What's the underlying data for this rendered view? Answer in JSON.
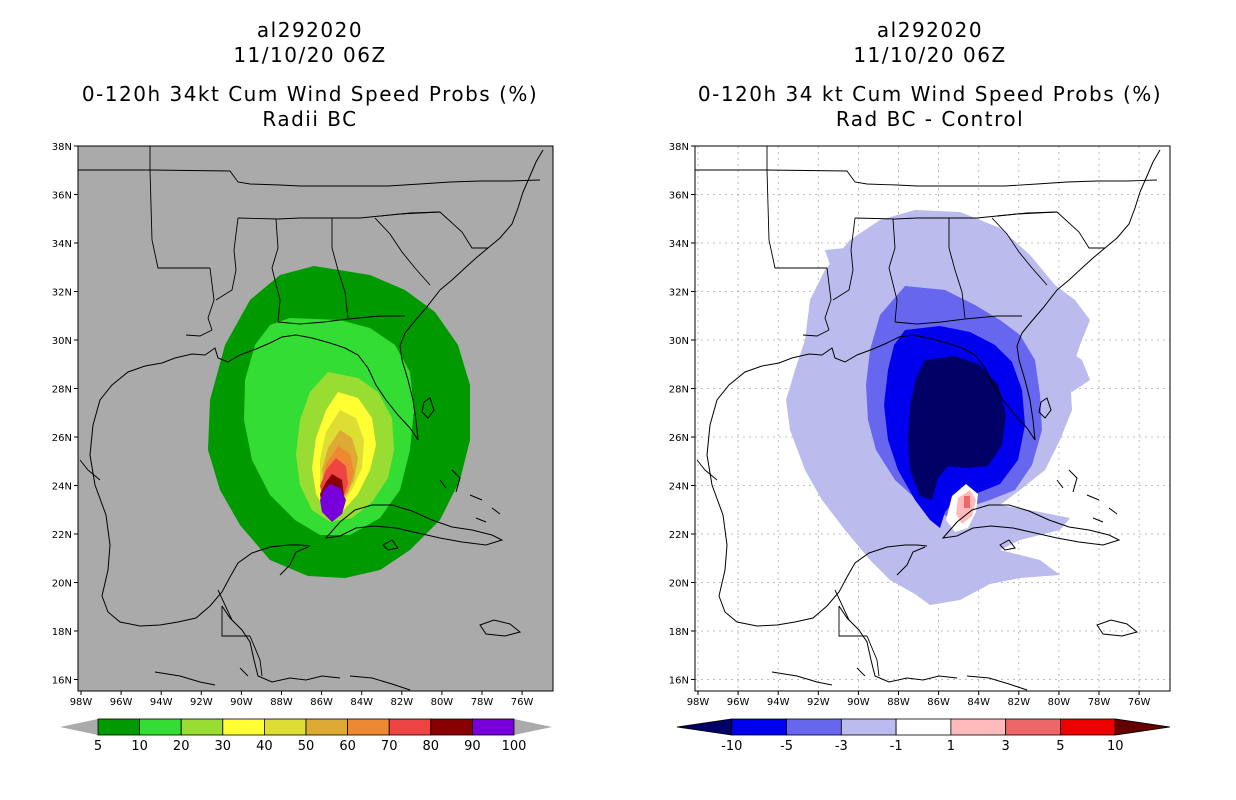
{
  "left_panel": {
    "storm_id": "al292020",
    "datetime": "11/10/20 06Z",
    "product": "0-120h 34kt Cum Wind Speed Probs (%)",
    "subtitle": "Radii BC",
    "colorbar": {
      "labels": [
        "5",
        "10",
        "20",
        "30",
        "40",
        "50",
        "60",
        "70",
        "80",
        "90",
        "100"
      ],
      "colors": [
        "#009900",
        "#33dd33",
        "#99dd33",
        "#ffff33",
        "#dddd33",
        "#ddaa33",
        "#ee8833",
        "#ee4444",
        "#880000",
        "#7700dd"
      ]
    },
    "background": "#aaaaaa"
  },
  "right_panel": {
    "storm_id": "al292020",
    "datetime": "11/10/20 06Z",
    "product": "0-120h 34 kt Cum Wind Speed Probs (%)",
    "subtitle": "Rad BC - Control",
    "colorbar": {
      "labels": [
        "-10",
        "-5",
        "-3",
        "-1",
        "1",
        "3",
        "5",
        "10"
      ],
      "colors": [
        "#000066",
        "#0000ee",
        "#6666ee",
        "#bbbbee",
        "#ffffff",
        "#ffbbbb",
        "#ee6666",
        "#ee0000",
        "#660000"
      ]
    },
    "background": "#ffffff"
  },
  "axes": {
    "lat_labels": [
      "38N",
      "36N",
      "34N",
      "32N",
      "30N",
      "28N",
      "26N",
      "24N",
      "22N",
      "20N",
      "18N",
      "16N"
    ],
    "lon_labels": [
      "98W",
      "96W",
      "94W",
      "92W",
      "90W",
      "88W",
      "86W",
      "84W",
      "82W",
      "80W",
      "78W",
      "76W"
    ]
  }
}
